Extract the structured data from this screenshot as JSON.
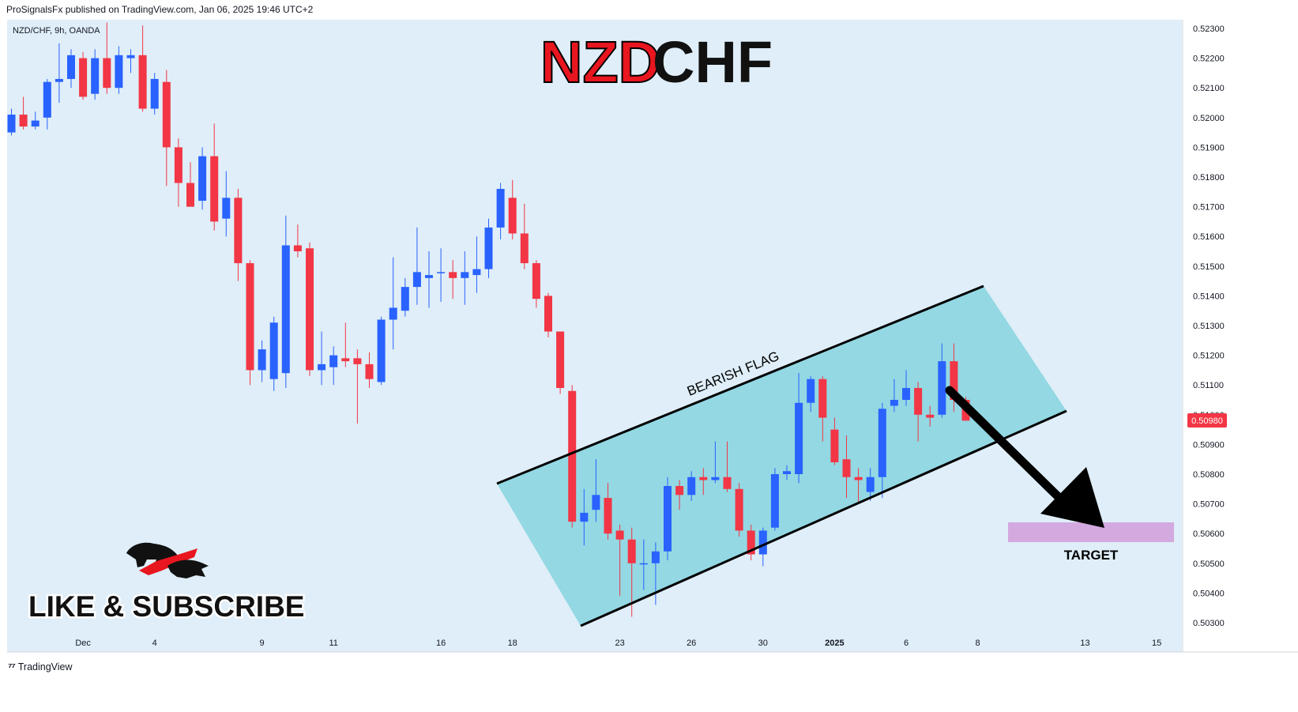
{
  "header": {
    "published": "ProSignalsFx published on TradingView.com, Jan 06, 2025 19:46 UTC+2"
  },
  "symbol_line": "NZD/CHF, 9h, OANDA",
  "big_title": {
    "part1": "NZD",
    "part2": "CHF"
  },
  "annotations": {
    "pattern": "BEARISH FLAG",
    "target": "TARGET",
    "promo": "LIKE & SUBSCRIBE"
  },
  "last_price": "0.50980",
  "footer": {
    "brand": "TradingView"
  },
  "colors": {
    "background": "#dfeef8",
    "bull": "#2962ff",
    "bear": "#f23645",
    "channel": "#8ed6e2",
    "target_box": "#d3a9e0",
    "title_red": "#e8161f"
  },
  "chart_data": {
    "type": "candlestick",
    "instrument": "NZD/CHF",
    "timeframe": "9h",
    "ylim": [
      0.5025,
      0.5232
    ],
    "y_ticks": [
      "0.52300",
      "0.52200",
      "0.52100",
      "0.52000",
      "0.51900",
      "0.51800",
      "0.51700",
      "0.51600",
      "0.51500",
      "0.51400",
      "0.51300",
      "0.51200",
      "0.51100",
      "0.51000",
      "0.50900",
      "0.50800",
      "0.50700",
      "0.50600",
      "0.50500",
      "0.50400",
      "0.50300"
    ],
    "x_ticks": [
      {
        "label": "Dec",
        "index": 6
      },
      {
        "label": "4",
        "index": 12
      },
      {
        "label": "9",
        "index": 21
      },
      {
        "label": "11",
        "index": 27
      },
      {
        "label": "16",
        "index": 36
      },
      {
        "label": "18",
        "index": 42
      },
      {
        "label": "23",
        "index": 51
      },
      {
        "label": "26",
        "index": 57
      },
      {
        "label": "30",
        "index": 63
      },
      {
        "label": "2025",
        "index": 69
      },
      {
        "label": "6",
        "index": 75
      },
      {
        "label": "8",
        "index": 81
      },
      {
        "label": "13",
        "index": 90
      },
      {
        "label": "15",
        "index": 96
      }
    ],
    "candles": [
      [
        0.5195,
        0.5203,
        0.5194,
        0.5201
      ],
      [
        0.5201,
        0.5207,
        0.5196,
        0.5197
      ],
      [
        0.5197,
        0.5202,
        0.5196,
        0.5199
      ],
      [
        0.52,
        0.5213,
        0.5196,
        0.5212
      ],
      [
        0.5212,
        0.5225,
        0.5205,
        0.5213
      ],
      [
        0.5213,
        0.5223,
        0.521,
        0.5221
      ],
      [
        0.522,
        0.5222,
        0.5206,
        0.5207
      ],
      [
        0.5208,
        0.5223,
        0.5206,
        0.522
      ],
      [
        0.522,
        0.5232,
        0.5208,
        0.521
      ],
      [
        0.521,
        0.5224,
        0.5208,
        0.5221
      ],
      [
        0.522,
        0.5223,
        0.5215,
        0.5221
      ],
      [
        0.5221,
        0.5231,
        0.5202,
        0.5203
      ],
      [
        0.5203,
        0.5215,
        0.5201,
        0.5213
      ],
      [
        0.5212,
        0.5216,
        0.5177,
        0.519
      ],
      [
        0.519,
        0.5193,
        0.517,
        0.5178
      ],
      [
        0.5178,
        0.5185,
        0.517,
        0.517
      ],
      [
        0.5172,
        0.519,
        0.5169,
        0.5187
      ],
      [
        0.5187,
        0.5198,
        0.5162,
        0.5165
      ],
      [
        0.5166,
        0.5182,
        0.516,
        0.5173
      ],
      [
        0.5173,
        0.5176,
        0.5145,
        0.5151
      ],
      [
        0.5151,
        0.5152,
        0.511,
        0.5115
      ],
      [
        0.5115,
        0.5125,
        0.5111,
        0.5122
      ],
      [
        0.5112,
        0.5133,
        0.5108,
        0.5131
      ],
      [
        0.5114,
        0.5167,
        0.5109,
        0.5157
      ],
      [
        0.5157,
        0.5164,
        0.5153,
        0.5155
      ],
      [
        0.5156,
        0.5158,
        0.5113,
        0.5115
      ],
      [
        0.5115,
        0.5128,
        0.511,
        0.5117
      ],
      [
        0.5116,
        0.5123,
        0.511,
        0.512
      ],
      [
        0.5119,
        0.5131,
        0.5116,
        0.5118
      ],
      [
        0.5119,
        0.5122,
        0.5097,
        0.5117
      ],
      [
        0.5117,
        0.5121,
        0.5109,
        0.5112
      ],
      [
        0.5111,
        0.5133,
        0.511,
        0.5132
      ],
      [
        0.5132,
        0.5153,
        0.5122,
        0.5136
      ],
      [
        0.5135,
        0.5146,
        0.5133,
        0.5143
      ],
      [
        0.5143,
        0.5163,
        0.5137,
        0.5148
      ],
      [
        0.5146,
        0.5155,
        0.5136,
        0.5147
      ],
      [
        0.5148,
        0.5156,
        0.5138,
        0.5148
      ],
      [
        0.5148,
        0.5152,
        0.5139,
        0.5146
      ],
      [
        0.5146,
        0.5155,
        0.5137,
        0.5148
      ],
      [
        0.5147,
        0.516,
        0.5141,
        0.5149
      ],
      [
        0.5149,
        0.5166,
        0.5146,
        0.5163
      ],
      [
        0.5163,
        0.5178,
        0.5159,
        0.5176
      ],
      [
        0.5173,
        0.5179,
        0.5159,
        0.5161
      ],
      [
        0.5161,
        0.5171,
        0.5149,
        0.5151
      ],
      [
        0.5151,
        0.5152,
        0.5136,
        0.5139
      ],
      [
        0.514,
        0.5141,
        0.5126,
        0.5128
      ],
      [
        0.5128,
        0.5128,
        0.5107,
        0.5109
      ],
      [
        0.5108,
        0.511,
        0.5062,
        0.5064
      ],
      [
        0.5064,
        0.5075,
        0.5056,
        0.5067
      ],
      [
        0.5068,
        0.5085,
        0.5064,
        0.5073
      ],
      [
        0.5072,
        0.5077,
        0.5058,
        0.506
      ],
      [
        0.5061,
        0.5063,
        0.5039,
        0.5058
      ],
      [
        0.5058,
        0.5062,
        0.5032,
        0.505
      ],
      [
        0.505,
        0.5058,
        0.5041,
        0.505
      ],
      [
        0.505,
        0.5057,
        0.5036,
        0.5054
      ],
      [
        0.5054,
        0.5079,
        0.5051,
        0.5076
      ],
      [
        0.5076,
        0.5078,
        0.5068,
        0.5073
      ],
      [
        0.5073,
        0.5081,
        0.5071,
        0.5079
      ],
      [
        0.5079,
        0.5082,
        0.5073,
        0.5078
      ],
      [
        0.5078,
        0.5091,
        0.5077,
        0.5079
      ],
      [
        0.5079,
        0.5091,
        0.5074,
        0.5075
      ],
      [
        0.5075,
        0.5077,
        0.5059,
        0.5061
      ],
      [
        0.5061,
        0.5063,
        0.5051,
        0.5053
      ],
      [
        0.5053,
        0.5062,
        0.5049,
        0.5061
      ],
      [
        0.5062,
        0.5082,
        0.5061,
        0.508
      ],
      [
        0.508,
        0.5083,
        0.5078,
        0.5081
      ],
      [
        0.508,
        0.5114,
        0.5077,
        0.5104
      ],
      [
        0.5104,
        0.5113,
        0.5101,
        0.5112
      ],
      [
        0.5112,
        0.5113,
        0.5091,
        0.5099
      ],
      [
        0.5095,
        0.5099,
        0.5083,
        0.5084
      ],
      [
        0.5085,
        0.5093,
        0.5072,
        0.5079
      ],
      [
        0.5079,
        0.5082,
        0.507,
        0.5078
      ],
      [
        0.5074,
        0.5082,
        0.5071,
        0.5079
      ],
      [
        0.5079,
        0.5104,
        0.5072,
        0.5102
      ],
      [
        0.5103,
        0.5112,
        0.5101,
        0.5105
      ],
      [
        0.5105,
        0.5115,
        0.5103,
        0.5109
      ],
      [
        0.5109,
        0.5111,
        0.5091,
        0.51
      ],
      [
        0.51,
        0.5103,
        0.5096,
        0.5099
      ],
      [
        0.51,
        0.5124,
        0.5099,
        0.5118
      ],
      [
        0.5118,
        0.5124,
        0.5101,
        0.5105
      ],
      [
        0.5105,
        0.5106,
        0.5098,
        0.5098
      ]
    ]
  }
}
